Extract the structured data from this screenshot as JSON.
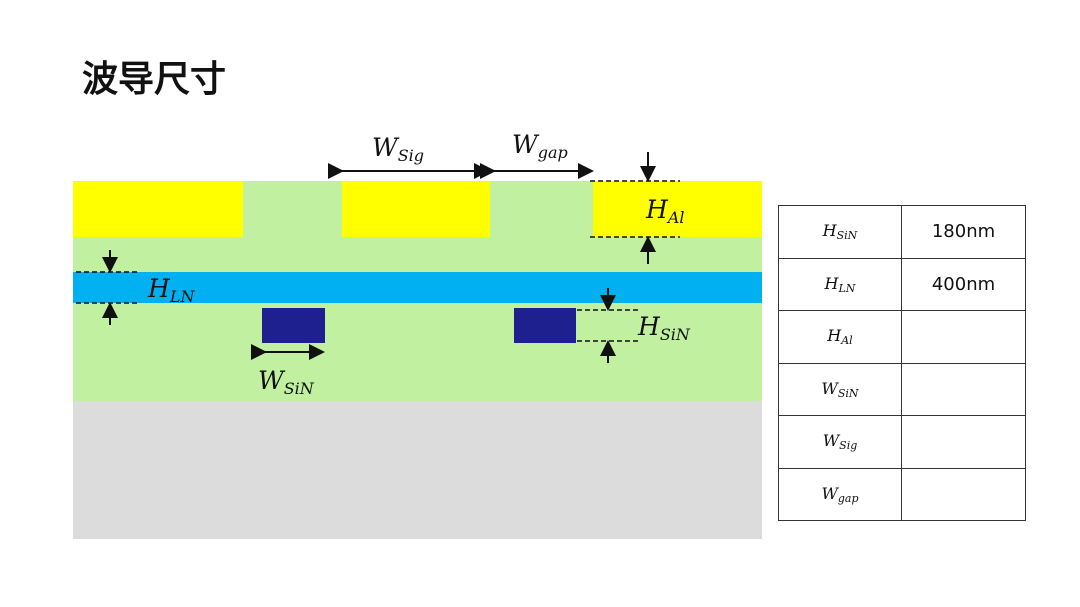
{
  "title": "波导尺寸",
  "colors": {
    "metal": "#ffff00",
    "cladding": "#c0f0a0",
    "ln": "#00b0f0",
    "sin": "#1f2090",
    "substrate": "#dcdcdc"
  },
  "labels": {
    "w_sig": {
      "main": "W",
      "sub": "Sig"
    },
    "w_gap": {
      "main": "W",
      "sub": "gap"
    },
    "h_al": {
      "main": "H",
      "sub": "Al"
    },
    "h_ln": {
      "main": "H",
      "sub": "LN"
    },
    "h_sin": {
      "main": "H",
      "sub": "SiN"
    },
    "w_sin": {
      "main": "W",
      "sub": "SiN"
    }
  },
  "table": [
    {
      "main": "H",
      "sub": "SiN",
      "value": "180nm"
    },
    {
      "main": "H",
      "sub": "LN",
      "value": "400nm"
    },
    {
      "main": "H",
      "sub": "Al",
      "value": ""
    },
    {
      "main": "W",
      "sub": "SiN",
      "value": ""
    },
    {
      "main": "W",
      "sub": "Sig",
      "value": ""
    },
    {
      "main": "W",
      "sub": "gap",
      "value": ""
    }
  ]
}
